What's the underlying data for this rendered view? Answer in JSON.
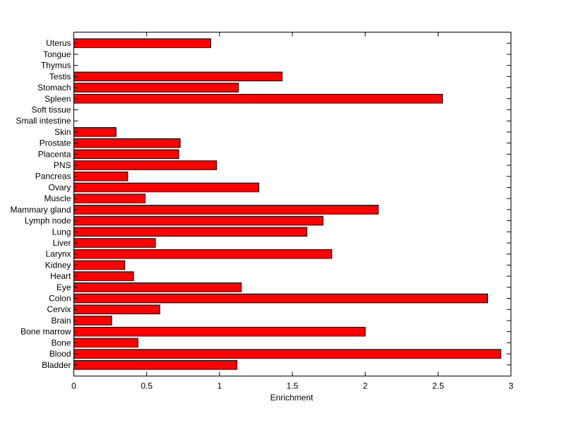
{
  "chart_data": {
    "type": "bar",
    "orientation": "horizontal",
    "title": "",
    "xlabel": "Enrichment",
    "ylabel": "",
    "xlim": [
      0,
      3
    ],
    "xticks": [
      0,
      0.5,
      1,
      1.5,
      2,
      2.5,
      3
    ],
    "xtick_labels": [
      "0",
      "0.5",
      "1",
      "1.5",
      "2",
      "2.5",
      "3"
    ],
    "grid": false,
    "legend": "none",
    "bar_color": "#ff0000",
    "edge_color": "#000000",
    "categories": [
      "Bladder",
      "Blood",
      "Bone",
      "Bone marrow",
      "Brain",
      "Cervix",
      "Colon",
      "Eye",
      "Heart",
      "Kidney",
      "Larynx",
      "Liver",
      "Lung",
      "Lymph node",
      "Mammary gland",
      "Muscle",
      "Ovary",
      "Pancreas",
      "PNS",
      "Placenta",
      "Prostate",
      "Skin",
      "Small intestine",
      "Soft tissue",
      "Spleen",
      "Stomach",
      "Testis",
      "Thymus",
      "Tongue",
      "Uterus"
    ],
    "values": [
      1.12,
      2.93,
      0.44,
      2.0,
      0.26,
      0.59,
      2.84,
      1.15,
      0.41,
      0.35,
      1.77,
      0.56,
      1.6,
      1.71,
      2.09,
      0.49,
      1.27,
      0.37,
      0.98,
      0.72,
      0.73,
      0.29,
      0,
      0,
      2.53,
      1.13,
      1.43,
      0,
      0,
      0.94
    ]
  }
}
